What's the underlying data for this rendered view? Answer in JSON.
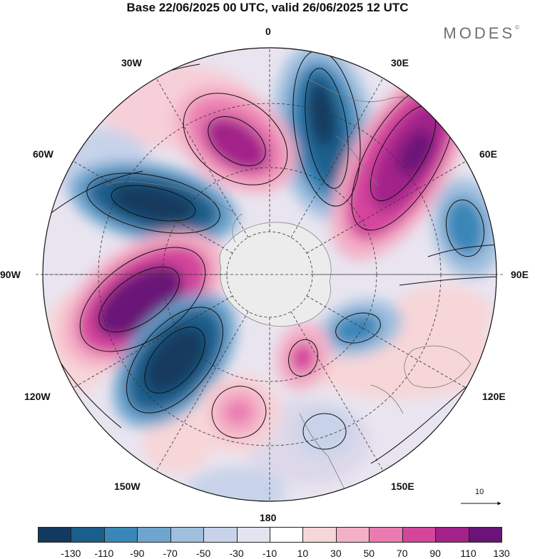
{
  "title": "Base 22/06/2025 00 UTC, valid 26/06/2025 12 UTC",
  "brand": "MODES",
  "brand_mark": "©",
  "longitude_labels": {
    "top": "0",
    "upper_left": "30W",
    "upper_right": "30E",
    "left_upper": "60W",
    "right_upper": "60E",
    "left": "90W",
    "right": "90E",
    "left_lower": "120W",
    "right_lower": "120E",
    "lower_left": "150W",
    "lower_right": "150E",
    "bottom": "180"
  },
  "vector_scale_label": "10",
  "colorbar": {
    "labels": [
      "-130",
      "-110",
      "-90",
      "-70",
      "-50",
      "-30",
      "-10",
      "10",
      "30",
      "50",
      "70",
      "90",
      "110",
      "130"
    ],
    "colors": [
      "#123a5e",
      "#1a5e8c",
      "#3a86b8",
      "#6ea5cf",
      "#9fbfdf",
      "#c8d3ea",
      "#e4e4f1",
      "#ffffff",
      "#f7d6d8",
      "#f4b0c6",
      "#ea7ab0",
      "#d4459c",
      "#a2218a",
      "#6a1378"
    ]
  }
}
